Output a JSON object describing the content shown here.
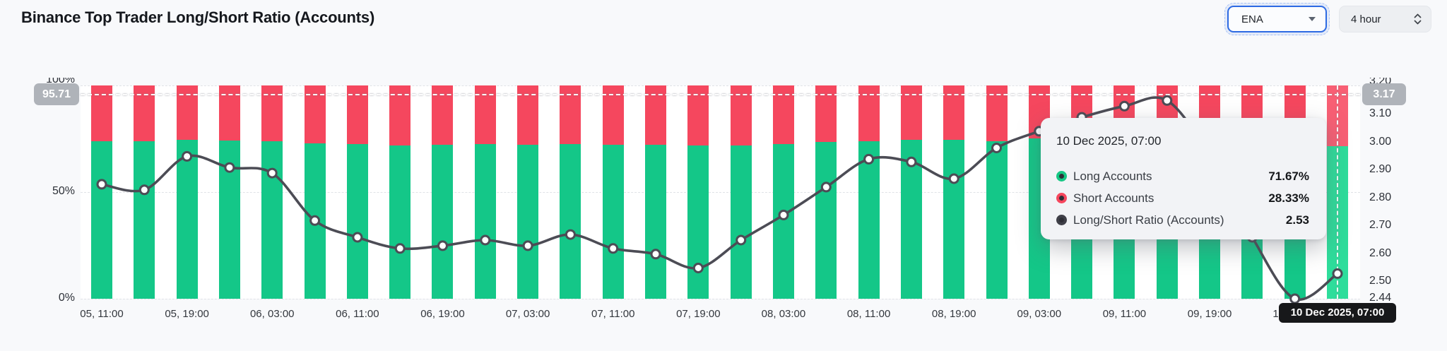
{
  "header": {
    "title": "Binance Top Trader Long/Short Ratio (Accounts)",
    "symbol_select": {
      "value": "ENA"
    },
    "interval_select": {
      "value": "4 hour"
    }
  },
  "chart_data": {
    "type": "bar",
    "subtype": "percent-stacked-columns-with-line",
    "title": "Binance Top Trader Long/Short Ratio (Accounts)",
    "categories": [
      "05, 11:00",
      "05, 15:00",
      "05, 19:00",
      "05, 23:00",
      "06, 03:00",
      "06, 07:00",
      "06, 11:00",
      "06, 15:00",
      "06, 19:00",
      "06, 23:00",
      "07, 03:00",
      "07, 07:00",
      "07, 11:00",
      "07, 15:00",
      "07, 19:00",
      "07, 23:00",
      "08, 03:00",
      "08, 07:00",
      "08, 11:00",
      "08, 15:00",
      "08, 19:00",
      "08, 23:00",
      "09, 03:00",
      "09, 07:00",
      "09, 11:00",
      "09, 15:00",
      "09, 19:00",
      "09, 23:00",
      "10, 03:00",
      "10, 07:00"
    ],
    "x_tick_labels": [
      "05, 11:00",
      "05, 19:00",
      "06, 03:00",
      "06, 11:00",
      "06, 19:00",
      "07, 03:00",
      "07, 11:00",
      "07, 19:00",
      "08, 03:00",
      "08, 11:00",
      "08, 19:00",
      "09, 03:00",
      "09, 11:00",
      "09, 19:00",
      "10, 03:00"
    ],
    "series": [
      {
        "name": "Long Accounts",
        "type": "bar",
        "stack": "accounts",
        "color": "#14c788",
        "values": [
          73.9,
          73.9,
          74.6,
          74.2,
          73.9,
          72.9,
          72.4,
          71.9,
          72.2,
          72.5,
          72.2,
          72.5,
          72.2,
          72.1,
          71.9,
          72.0,
          72.5,
          73.5,
          73.8,
          74.5,
          74.4,
          73.8,
          75.2,
          74.8,
          74.5,
          75.5,
          74.0,
          73.0,
          72.0,
          71.67
        ]
      },
      {
        "name": "Short Accounts",
        "type": "bar",
        "stack": "accounts",
        "color": "#f5475e",
        "values": [
          26.1,
          26.1,
          25.4,
          25.8,
          26.1,
          27.1,
          27.6,
          28.1,
          27.8,
          27.5,
          27.8,
          27.5,
          27.8,
          27.9,
          28.1,
          28.0,
          27.5,
          26.5,
          26.2,
          25.5,
          25.6,
          26.2,
          24.8,
          25.2,
          25.5,
          24.5,
          26.0,
          27.0,
          28.0,
          28.33
        ]
      },
      {
        "name": "Long/Short Ratio (Accounts)",
        "type": "line",
        "axis": "right",
        "color": "#4c4c55",
        "values": [
          2.85,
          2.83,
          2.95,
          2.91,
          2.89,
          2.72,
          2.66,
          2.62,
          2.63,
          2.65,
          2.63,
          2.67,
          2.62,
          2.6,
          2.55,
          2.65,
          2.74,
          2.84,
          2.94,
          2.93,
          2.87,
          2.98,
          3.04,
          3.09,
          3.13,
          3.15,
          2.95,
          2.66,
          2.44,
          2.53
        ]
      }
    ],
    "left_axis": {
      "unit": "%",
      "min": 0,
      "max": 100,
      "tick_labels": [
        "100%",
        "50%",
        "0%"
      ],
      "tick_values": [
        100,
        50,
        0
      ]
    },
    "right_axis": {
      "min": 2.44,
      "max": 3.204,
      "tick_labels": [
        "3.20",
        "3.10",
        "3.00",
        "2.90",
        "2.80",
        "2.70",
        "2.60",
        "2.50",
        "2.44"
      ]
    },
    "grid": "horizontal-dashed",
    "legend": "none",
    "crosshair": {
      "left_value": "95.71",
      "right_value": "3.17",
      "x_label": "10 Dec 2025, 07:00",
      "x_index": 29
    }
  },
  "tooltip": {
    "title": "10 Dec 2025, 07:00",
    "rows": [
      {
        "label": "Long Accounts",
        "value": "71.67%",
        "color": "#16c784"
      },
      {
        "label": "Short Accounts",
        "value": "28.33%",
        "color": "#f6465d"
      },
      {
        "label": "Long/Short Ratio (Accounts)",
        "value": "2.53",
        "color": "#3f3f48"
      }
    ]
  }
}
